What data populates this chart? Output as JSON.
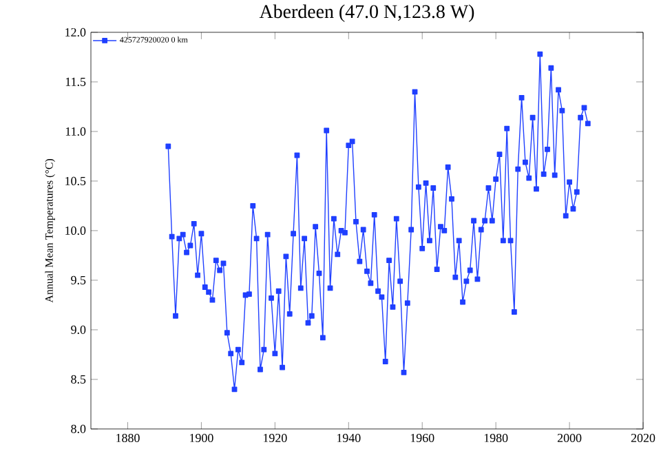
{
  "chart_data": {
    "type": "line",
    "title": "Aberdeen (47.0 N,123.8 W)",
    "ylabel": "Annual Mean Temperatures (°C)",
    "x": [
      1891,
      1892,
      1893,
      1894,
      1895,
      1896,
      1897,
      1898,
      1899,
      1900,
      1901,
      1902,
      1903,
      1904,
      1905,
      1906,
      1907,
      1908,
      1909,
      1910,
      1911,
      1912,
      1913,
      1914,
      1915,
      1916,
      1917,
      1918,
      1919,
      1920,
      1921,
      1922,
      1923,
      1924,
      1925,
      1926,
      1927,
      1928,
      1929,
      1930,
      1931,
      1932,
      1933,
      1934,
      1935,
      1936,
      1937,
      1938,
      1939,
      1940,
      1941,
      1942,
      1943,
      1944,
      1945,
      1946,
      1947,
      1948,
      1949,
      1950,
      1951,
      1952,
      1953,
      1954,
      1955,
      1956,
      1957,
      1958,
      1959,
      1960,
      1961,
      1962,
      1963,
      1964,
      1965,
      1966,
      1967,
      1968,
      1969,
      1970,
      1971,
      1972,
      1973,
      1974,
      1975,
      1976,
      1977,
      1978,
      1979,
      1980,
      1981,
      1982,
      1983,
      1984,
      1985,
      1986,
      1987,
      1988,
      1989,
      1990,
      1991,
      1992,
      1993,
      1994,
      1995,
      1996,
      1997,
      1998,
      1999,
      2000,
      2001,
      2002,
      2003,
      2004,
      2005
    ],
    "series": [
      {
        "name": "425727920020 0 km",
        "color": "#1f3fff",
        "values": [
          10.85,
          9.94,
          9.14,
          9.92,
          9.96,
          9.78,
          9.85,
          10.07,
          9.55,
          9.97,
          9.43,
          9.38,
          9.3,
          9.7,
          9.6,
          9.67,
          8.97,
          8.76,
          8.4,
          8.8,
          8.67,
          9.35,
          9.36,
          10.25,
          9.92,
          8.6,
          8.8,
          9.96,
          9.32,
          8.76,
          9.39,
          8.62,
          9.74,
          9.16,
          9.97,
          10.76,
          9.42,
          9.92,
          9.07,
          9.14,
          10.04,
          9.57,
          8.92,
          11.01,
          9.42,
          10.12,
          9.76,
          10.0,
          9.98,
          10.86,
          10.9,
          10.09,
          9.69,
          10.01,
          9.59,
          9.47,
          10.16,
          9.39,
          9.33,
          8.68,
          9.7,
          9.23,
          10.12,
          9.49,
          8.57,
          9.27,
          10.01,
          11.4,
          10.44,
          9.82,
          10.48,
          9.9,
          10.43,
          9.61,
          10.04,
          10.0,
          10.64,
          10.32,
          9.53,
          9.9,
          9.28,
          9.49,
          9.6,
          10.1,
          9.51,
          10.01,
          10.1,
          10.43,
          10.1,
          10.52,
          10.77,
          9.9,
          11.03,
          9.9,
          9.18,
          10.62,
          11.34,
          10.69,
          10.53,
          11.14,
          10.42,
          11.78,
          10.57,
          10.82,
          11.64,
          10.56,
          11.42,
          11.21,
          10.15,
          10.49,
          10.22,
          10.39,
          11.14,
          11.24,
          11.08
        ]
      }
    ],
    "xlim": [
      1870,
      2020
    ],
    "xticks": [
      1880,
      1900,
      1920,
      1940,
      1960,
      1980,
      2000,
      2020
    ],
    "ylim": [
      8,
      12
    ],
    "yticks": [
      {
        "value": 8,
        "label": "8.0"
      },
      {
        "value": 8.5,
        "label": "8.5"
      },
      {
        "value": 9,
        "label": "9.0"
      },
      {
        "value": 9.5,
        "label": "9.5"
      },
      {
        "value": 10,
        "label": "10.0"
      },
      {
        "value": 10.5,
        "label": "10.5"
      },
      {
        "value": 11,
        "label": "11.0"
      },
      {
        "value": 11.5,
        "label": "11.5"
      },
      {
        "value": 12,
        "label": "12.0"
      }
    ],
    "legend": "top left",
    "marker": "square",
    "line_style": "solid",
    "grid": false
  }
}
